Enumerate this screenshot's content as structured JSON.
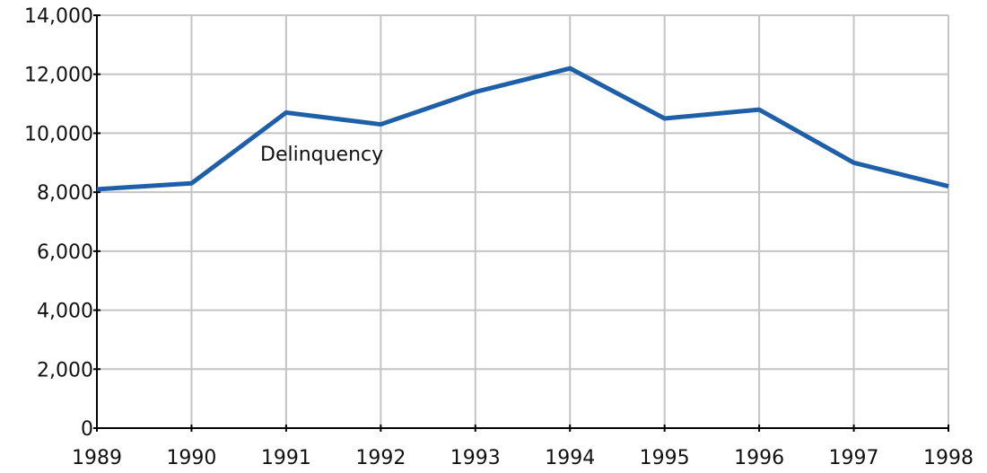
{
  "chart_data": {
    "type": "line",
    "x": [
      1989,
      1990,
      1991,
      1992,
      1993,
      1994,
      1995,
      1996,
      1997,
      1998
    ],
    "series": [
      {
        "name": "Delinquency",
        "color": "#1f5fa8",
        "values": [
          8100,
          8300,
          10700,
          10300,
          11400,
          12200,
          10500,
          10800,
          9000,
          8200
        ]
      }
    ],
    "xlim": [
      1989,
      1998
    ],
    "xticks": [
      1989,
      1990,
      1991,
      1992,
      1993,
      1994,
      1995,
      1996,
      1997,
      1998
    ],
    "ylim": [
      0,
      14000
    ],
    "yticks": [
      0,
      {
        "value": 2000,
        "label": "2,000"
      },
      {
        "value": 4000,
        "label": "4,000"
      },
      {
        "value": 6000,
        "label": "6,000"
      },
      {
        "value": 8000,
        "label": "8,000"
      },
      {
        "value": 10000,
        "label": "10,000"
      },
      {
        "value": 12000,
        "label": "12,000"
      },
      {
        "value": 14000,
        "label": "14,000"
      }
    ],
    "grid": true
  }
}
